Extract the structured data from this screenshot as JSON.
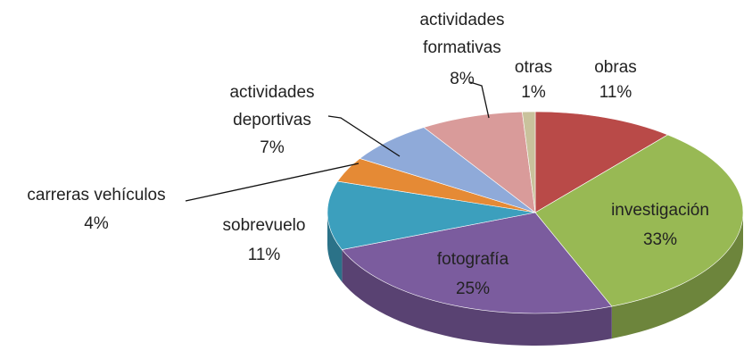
{
  "chart_data": {
    "type": "pie3d",
    "categories": [
      "obras",
      "investigación",
      "fotografía",
      "sobrevuelo",
      "carreras vehículos",
      "actividades deportivas",
      "actividades formativas",
      "otras"
    ],
    "values": [
      11,
      33,
      25,
      11,
      4,
      7,
      8,
      1
    ],
    "value_labels": [
      "11%",
      "33%",
      "25%",
      "11%",
      "4%",
      "7%",
      "8%",
      "1%"
    ],
    "colors": [
      "#b94a48",
      "#98b954",
      "#7b5c9e",
      "#3c9fbd",
      "#e58a35",
      "#8faad9",
      "#d99b9a",
      "#c9c29c"
    ]
  }
}
